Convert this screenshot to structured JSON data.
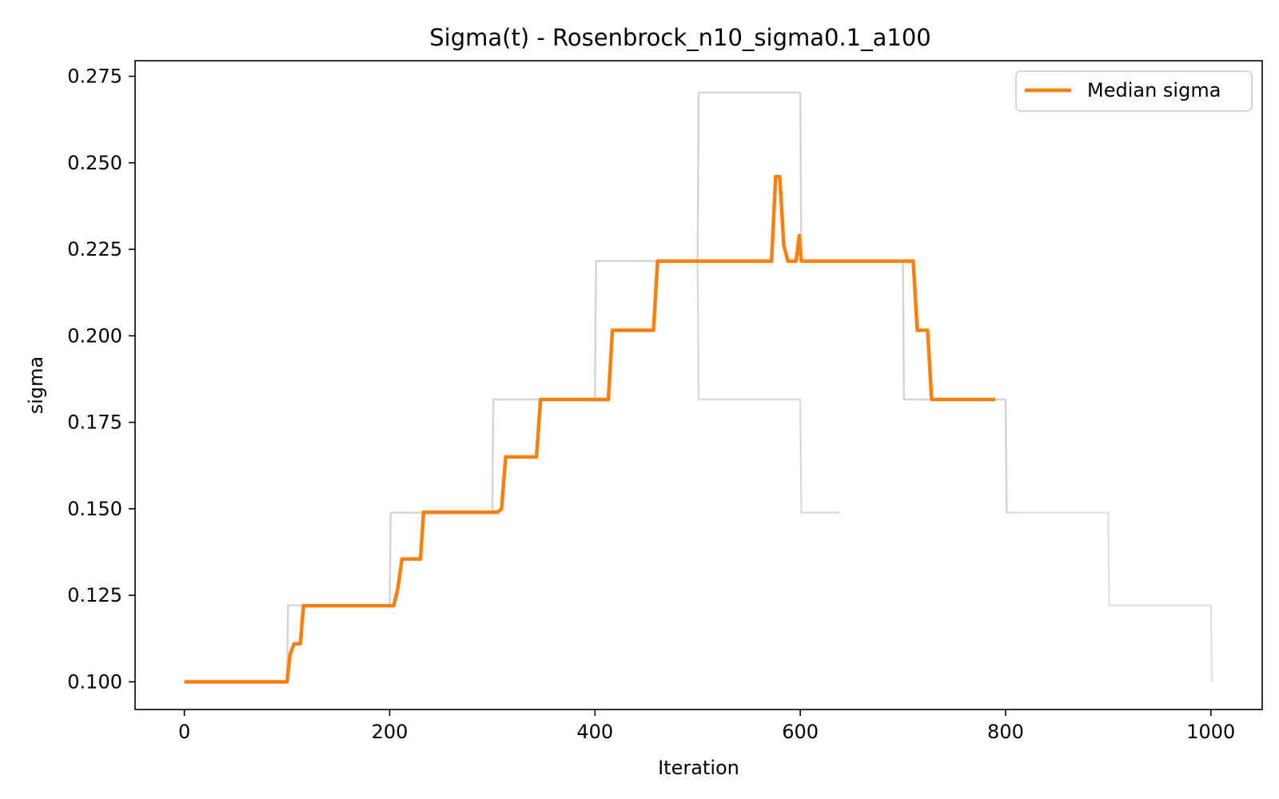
{
  "chart_data": {
    "type": "line",
    "title": "Sigma(t) - Rosenbrock_n10_sigma0.1_a100",
    "xlabel": "Iteration",
    "ylabel": "sigma",
    "xlim": [
      -48,
      1050
    ],
    "ylim": [
      0.092,
      0.2795
    ],
    "x_ticks": [
      0,
      200,
      400,
      600,
      800,
      1000
    ],
    "y_ticks": [
      0.1,
      0.125,
      0.15,
      0.175,
      0.2,
      0.225,
      0.25,
      0.275
    ],
    "y_tick_labels": [
      "0.100",
      "0.125",
      "0.150",
      "0.175",
      "0.200",
      "0.225",
      "0.250",
      "0.275"
    ],
    "grid": false,
    "legend": {
      "position": "top-right",
      "entries": [
        "Median sigma"
      ]
    },
    "series": [
      {
        "name": "",
        "role": "individual run",
        "color": "#d3d3d3",
        "x": [
          0,
          100,
          101,
          200,
          201,
          300,
          301,
          400,
          401,
          500,
          501,
          600,
          601,
          700,
          701,
          800,
          801,
          812
        ],
        "y": [
          0.1,
          0.1,
          0.1221,
          0.1221,
          0.1489,
          0.1489,
          0.1816,
          0.1816,
          0.2216,
          0.2216,
          0.2703,
          0.2703,
          0.2216,
          0.2216,
          0.1816,
          0.1816,
          0.1489,
          0.1489
        ]
      },
      {
        "name": "",
        "role": "individual run",
        "color": "#d9d9d9",
        "x": [
          500,
          501,
          600,
          601,
          638
        ],
        "y": [
          0.2216,
          0.1816,
          0.1816,
          0.1489,
          0.1489
        ]
      },
      {
        "name": "",
        "role": "individual run",
        "color": "#e0e0e0",
        "x": [
          800,
          900,
          901,
          1000,
          1001
        ],
        "y": [
          0.1489,
          0.1489,
          0.1221,
          0.1221,
          0.1
        ]
      },
      {
        "name": "Median sigma",
        "role": "median",
        "color": "#ff7f0e",
        "x": [
          0,
          100,
          103,
          107,
          110,
          113,
          116,
          120,
          200,
          204,
          208,
          212,
          220,
          230,
          233,
          300,
          305,
          309,
          313,
          320,
          340,
          343,
          347,
          400,
          413,
          417,
          430,
          457,
          461,
          500,
          560,
          572,
          576,
          580,
          584,
          588,
          596,
          599,
          601,
          604,
          650,
          706,
          710,
          714,
          724,
          728,
          790
        ],
        "y": [
          0.1,
          0.1,
          0.108,
          0.111,
          0.111,
          0.111,
          0.122,
          0.122,
          0.122,
          0.122,
          0.127,
          0.1355,
          0.1355,
          0.1355,
          0.149,
          0.149,
          0.149,
          0.15,
          0.165,
          0.165,
          0.165,
          0.165,
          0.1816,
          0.1816,
          0.1816,
          0.2016,
          0.2016,
          0.2016,
          0.2216,
          0.2216,
          0.2216,
          0.2216,
          0.246,
          0.246,
          0.226,
          0.2216,
          0.2216,
          0.229,
          0.2216,
          0.2216,
          0.2216,
          0.2216,
          0.2216,
          0.2016,
          0.2016,
          0.1816,
          0.1816
        ]
      }
    ]
  }
}
